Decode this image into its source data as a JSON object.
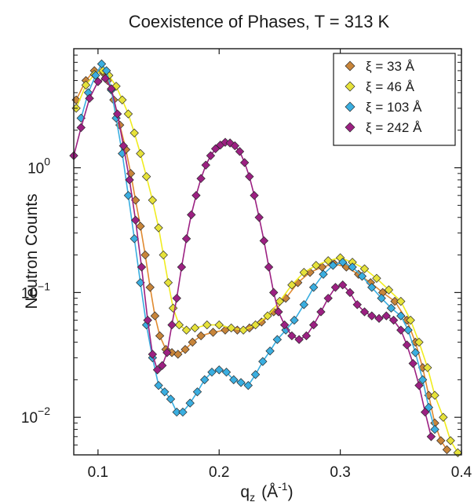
{
  "chart_data": {
    "type": "scatter",
    "title": "Coexistence of Phases, T = 313 K",
    "xlabel": "q",
    "xlabel_sub": "z",
    "xlabel_unit_open": "(Å",
    "xlabel_unit_sup": "-1",
    "xlabel_unit_close": ")",
    "ylabel": "Neutron Counts",
    "xlim": [
      0.08,
      0.4
    ],
    "ylim": [
      0.005,
      9
    ],
    "yscale": "log",
    "grid": false,
    "legend_position": "top-right",
    "x_ticks": [
      {
        "value": 0.1,
        "label": "0.1"
      },
      {
        "value": 0.2,
        "label": "0.2"
      },
      {
        "value": 0.3,
        "label": "0.3"
      },
      {
        "value": 0.4,
        "label": "0.4"
      }
    ],
    "y_ticks": [
      {
        "value": 1,
        "base": "10",
        "exp": "0"
      },
      {
        "value": 0.1,
        "base": "10",
        "exp": "−1"
      },
      {
        "value": 0.01,
        "base": "10",
        "exp": "−2"
      }
    ],
    "series": [
      {
        "name": "ξ = 33 Å",
        "color": "#c8853a",
        "line_color": "#e08a30",
        "points": [
          [
            0.082,
            3.5
          ],
          [
            0.09,
            5.0
          ],
          [
            0.097,
            6.0
          ],
          [
            0.104,
            5.8
          ],
          [
            0.108,
            5.0
          ],
          [
            0.113,
            3.5
          ],
          [
            0.118,
            2.2
          ],
          [
            0.123,
            1.4
          ],
          [
            0.127,
            0.9
          ],
          [
            0.131,
            0.55
          ],
          [
            0.135,
            0.34
          ],
          [
            0.139,
            0.2
          ],
          [
            0.143,
            0.11
          ],
          [
            0.147,
            0.065
          ],
          [
            0.151,
            0.045
          ],
          [
            0.156,
            0.035
          ],
          [
            0.161,
            0.033
          ],
          [
            0.166,
            0.032
          ],
          [
            0.172,
            0.035
          ],
          [
            0.178,
            0.04
          ],
          [
            0.185,
            0.045
          ],
          [
            0.195,
            0.048
          ],
          [
            0.205,
            0.05
          ],
          [
            0.215,
            0.05
          ],
          [
            0.225,
            0.052
          ],
          [
            0.235,
            0.058
          ],
          [
            0.245,
            0.07
          ],
          [
            0.255,
            0.09
          ],
          [
            0.265,
            0.12
          ],
          [
            0.275,
            0.145
          ],
          [
            0.285,
            0.16
          ],
          [
            0.295,
            0.17
          ],
          [
            0.305,
            0.16
          ],
          [
            0.315,
            0.14
          ],
          [
            0.325,
            0.12
          ],
          [
            0.335,
            0.1
          ],
          [
            0.345,
            0.085
          ],
          [
            0.355,
            0.06
          ],
          [
            0.362,
            0.04
          ],
          [
            0.368,
            0.025
          ],
          [
            0.373,
            0.015
          ],
          [
            0.378,
            0.009
          ],
          [
            0.383,
            0.0065
          ],
          [
            0.388,
            0.0055
          ]
        ]
      },
      {
        "name": "ξ = 46 Å",
        "color": "#e6e23a",
        "line_color": "#f0ec20",
        "points": [
          [
            0.082,
            3.0
          ],
          [
            0.09,
            4.6
          ],
          [
            0.097,
            5.6
          ],
          [
            0.104,
            6.0
          ],
          [
            0.109,
            5.5
          ],
          [
            0.115,
            4.5
          ],
          [
            0.12,
            3.5
          ],
          [
            0.125,
            2.7
          ],
          [
            0.13,
            1.9
          ],
          [
            0.135,
            1.3
          ],
          [
            0.14,
            0.85
          ],
          [
            0.145,
            0.55
          ],
          [
            0.15,
            0.33
          ],
          [
            0.154,
            0.2
          ],
          [
            0.158,
            0.12
          ],
          [
            0.162,
            0.075
          ],
          [
            0.167,
            0.055
          ],
          [
            0.173,
            0.05
          ],
          [
            0.18,
            0.052
          ],
          [
            0.19,
            0.055
          ],
          [
            0.2,
            0.055
          ],
          [
            0.21,
            0.052
          ],
          [
            0.22,
            0.05
          ],
          [
            0.23,
            0.055
          ],
          [
            0.24,
            0.065
          ],
          [
            0.25,
            0.085
          ],
          [
            0.26,
            0.115
          ],
          [
            0.27,
            0.145
          ],
          [
            0.28,
            0.165
          ],
          [
            0.29,
            0.18
          ],
          [
            0.3,
            0.19
          ],
          [
            0.31,
            0.175
          ],
          [
            0.32,
            0.155
          ],
          [
            0.33,
            0.13
          ],
          [
            0.34,
            0.105
          ],
          [
            0.35,
            0.085
          ],
          [
            0.358,
            0.06
          ],
          [
            0.365,
            0.04
          ],
          [
            0.372,
            0.025
          ],
          [
            0.378,
            0.015
          ],
          [
            0.385,
            0.01
          ],
          [
            0.391,
            0.0065
          ],
          [
            0.397,
            0.0052
          ]
        ]
      },
      {
        "name": "ξ = 103 Å",
        "color": "#3aaee0",
        "line_color": "#3aaee0",
        "points": [
          [
            0.086,
            2.5
          ],
          [
            0.092,
            4.0
          ],
          [
            0.098,
            5.5
          ],
          [
            0.103,
            6.8
          ],
          [
            0.107,
            6.0
          ],
          [
            0.111,
            4.2
          ],
          [
            0.115,
            2.5
          ],
          [
            0.12,
            1.3
          ],
          [
            0.125,
            0.6
          ],
          [
            0.13,
            0.27
          ],
          [
            0.135,
            0.12
          ],
          [
            0.14,
            0.055
          ],
          [
            0.145,
            0.03
          ],
          [
            0.15,
            0.018
          ],
          [
            0.155,
            0.016
          ],
          [
            0.16,
            0.014
          ],
          [
            0.165,
            0.011
          ],
          [
            0.17,
            0.011
          ],
          [
            0.176,
            0.013
          ],
          [
            0.182,
            0.016
          ],
          [
            0.188,
            0.02
          ],
          [
            0.194,
            0.023
          ],
          [
            0.2,
            0.024
          ],
          [
            0.206,
            0.023
          ],
          [
            0.212,
            0.02
          ],
          [
            0.218,
            0.019
          ],
          [
            0.224,
            0.018
          ],
          [
            0.23,
            0.022
          ],
          [
            0.236,
            0.028
          ],
          [
            0.242,
            0.034
          ],
          [
            0.248,
            0.042
          ],
          [
            0.255,
            0.05
          ],
          [
            0.262,
            0.06
          ],
          [
            0.27,
            0.08
          ],
          [
            0.278,
            0.11
          ],
          [
            0.286,
            0.14
          ],
          [
            0.294,
            0.165
          ],
          [
            0.302,
            0.175
          ],
          [
            0.31,
            0.16
          ],
          [
            0.318,
            0.135
          ],
          [
            0.326,
            0.11
          ],
          [
            0.334,
            0.09
          ],
          [
            0.342,
            0.075
          ],
          [
            0.35,
            0.065
          ],
          [
            0.356,
            0.05
          ],
          [
            0.362,
            0.033
          ],
          [
            0.368,
            0.02
          ],
          [
            0.373,
            0.012
          ],
          [
            0.378,
            0.008
          ]
        ]
      },
      {
        "name": "ξ = 242 Å",
        "color": "#9c2082",
        "line_color": "#9c2082",
        "points": [
          [
            0.08,
            1.25
          ],
          [
            0.086,
            2.1
          ],
          [
            0.093,
            3.6
          ],
          [
            0.1,
            4.9
          ],
          [
            0.106,
            5.2
          ],
          [
            0.111,
            4.3
          ],
          [
            0.116,
            2.7
          ],
          [
            0.121,
            1.5
          ],
          [
            0.126,
            0.8
          ],
          [
            0.131,
            0.38
          ],
          [
            0.136,
            0.16
          ],
          [
            0.141,
            0.06
          ],
          [
            0.145,
            0.032
          ],
          [
            0.149,
            0.024
          ],
          [
            0.153,
            0.026
          ],
          [
            0.157,
            0.033
          ],
          [
            0.161,
            0.055
          ],
          [
            0.165,
            0.09
          ],
          [
            0.169,
            0.16
          ],
          [
            0.173,
            0.27
          ],
          [
            0.177,
            0.42
          ],
          [
            0.181,
            0.6
          ],
          [
            0.185,
            0.82
          ],
          [
            0.189,
            1.05
          ],
          [
            0.193,
            1.25
          ],
          [
            0.197,
            1.42
          ],
          [
            0.201,
            1.52
          ],
          [
            0.205,
            1.6
          ],
          [
            0.209,
            1.58
          ],
          [
            0.213,
            1.5
          ],
          [
            0.217,
            1.35
          ],
          [
            0.221,
            1.1
          ],
          [
            0.225,
            0.85
          ],
          [
            0.229,
            0.6
          ],
          [
            0.233,
            0.4
          ],
          [
            0.237,
            0.26
          ],
          [
            0.241,
            0.16
          ],
          [
            0.245,
            0.1
          ],
          [
            0.249,
            0.07
          ],
          [
            0.254,
            0.055
          ],
          [
            0.26,
            0.045
          ],
          [
            0.266,
            0.042
          ],
          [
            0.272,
            0.045
          ],
          [
            0.278,
            0.055
          ],
          [
            0.284,
            0.07
          ],
          [
            0.29,
            0.09
          ],
          [
            0.296,
            0.11
          ],
          [
            0.302,
            0.115
          ],
          [
            0.308,
            0.1
          ],
          [
            0.314,
            0.08
          ],
          [
            0.32,
            0.07
          ],
          [
            0.326,
            0.065
          ],
          [
            0.332,
            0.062
          ],
          [
            0.338,
            0.065
          ],
          [
            0.344,
            0.06
          ],
          [
            0.35,
            0.05
          ],
          [
            0.355,
            0.038
          ],
          [
            0.36,
            0.027
          ],
          [
            0.365,
            0.018
          ],
          [
            0.37,
            0.011
          ],
          [
            0.375,
            0.007
          ]
        ]
      }
    ]
  }
}
